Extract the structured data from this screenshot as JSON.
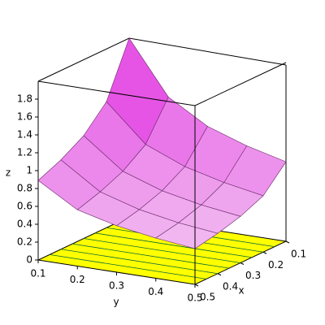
{
  "chart_data": {
    "type": "surface3d",
    "x_label": "x",
    "y_label": "y",
    "z_label": "z",
    "x": [
      0.1,
      0.2,
      0.3,
      0.4,
      0.5
    ],
    "y": [
      0.1,
      0.2,
      0.3,
      0.4,
      0.5
    ],
    "z": [
      [
        2.0,
        1.41,
        1.15,
        1.0,
        0.89
      ],
      [
        1.41,
        1.0,
        0.82,
        0.71,
        0.63
      ],
      [
        1.15,
        0.82,
        0.67,
        0.58,
        0.52
      ],
      [
        1.0,
        0.71,
        0.58,
        0.5,
        0.45
      ],
      [
        0.89,
        0.63,
        0.52,
        0.45,
        0.4
      ]
    ],
    "xlim": [
      0.1,
      0.5
    ],
    "ylim": [
      0.1,
      0.5
    ],
    "zlim": [
      0,
      2
    ],
    "xticks": [
      0.1,
      0.2,
      0.3,
      0.4,
      0.5
    ],
    "yticks": [
      0.1,
      0.2,
      0.3,
      0.4,
      0.5
    ],
    "zticks": [
      0,
      0.2,
      0.4,
      0.6,
      0.8,
      1,
      1.2,
      1.4,
      1.6,
      1.8
    ],
    "color_high": "#e020e0",
    "color_low": "#f6e0f4",
    "plane_color": "#ffff00"
  }
}
